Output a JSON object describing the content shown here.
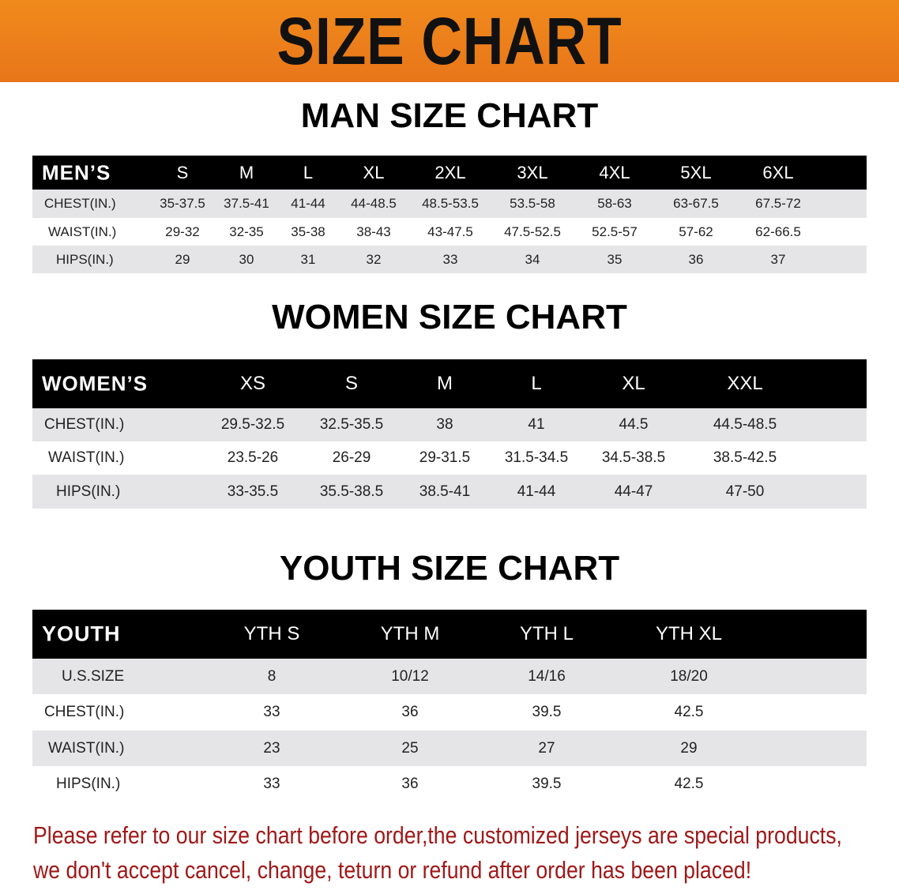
{
  "banner_title": "SIZE CHART",
  "men": {
    "title": "MAN SIZE CHART",
    "header_label": "MEN’S",
    "sizes": [
      "S",
      "M",
      "L",
      "XL",
      "2XL",
      "3XL",
      "4XL",
      "5XL",
      "6XL"
    ],
    "rows": [
      {
        "label": "CHEST(IN.)",
        "values": [
          "35-37.5",
          "37.5-41",
          "41-44",
          "44-48.5",
          "48.5-53.5",
          "53.5-58",
          "58-63",
          "63-67.5",
          "67.5-72"
        ]
      },
      {
        "label": "WAIST(IN.)",
        "values": [
          "29-32",
          "32-35",
          "35-38",
          "38-43",
          "43-47.5",
          "47.5-52.5",
          "52.5-57",
          "57-62",
          "62-66.5"
        ]
      },
      {
        "label": "HIPS(IN.)",
        "values": [
          "29",
          "30",
          "31",
          "32",
          "33",
          "34",
          "35",
          "36",
          "37"
        ]
      }
    ]
  },
  "women": {
    "title": "WOMEN SIZE CHART",
    "header_label": "WOMEN’S",
    "sizes": [
      "XS",
      "S",
      "M",
      "L",
      "XL",
      "XXL"
    ],
    "rows": [
      {
        "label": "CHEST(IN.)",
        "values": [
          "29.5-32.5",
          "32.5-35.5",
          "38",
          "41",
          "44.5",
          "44.5-48.5"
        ]
      },
      {
        "label": "WAIST(IN.)",
        "values": [
          "23.5-26",
          "26-29",
          "29-31.5",
          "31.5-34.5",
          "34.5-38.5",
          "38.5-42.5"
        ]
      },
      {
        "label": "HIPS(IN.)",
        "values": [
          "33-35.5",
          "35.5-38.5",
          "38.5-41",
          "41-44",
          "44-47",
          "47-50"
        ]
      }
    ]
  },
  "youth": {
    "title": "YOUTH SIZE CHART",
    "header_label": "YOUTH",
    "sizes": [
      "YTH S",
      "YTH M",
      "YTH L",
      "YTH XL"
    ],
    "rows": [
      {
        "label": "U.S.SIZE",
        "values": [
          "8",
          "10/12",
          "14/16",
          "18/20"
        ]
      },
      {
        "label": "CHEST(IN.)",
        "values": [
          "33",
          "36",
          "39.5",
          "42.5"
        ]
      },
      {
        "label": "WAIST(IN.)",
        "values": [
          "23",
          "25",
          "27",
          "29"
        ]
      },
      {
        "label": "HIPS(IN.)",
        "values": [
          "33",
          "36",
          "39.5",
          "42.5"
        ]
      }
    ]
  },
  "note": {
    "line1": "Please refer to our size chart before order,the customized jerseys are special products,",
    "line2": "we don't accept cancel, change, teturn or refund after order has been placed!"
  },
  "colors": {
    "banner": "#e8761a",
    "header": "#000000",
    "row_alt": "#e5e5e8",
    "note": "#a01818"
  }
}
